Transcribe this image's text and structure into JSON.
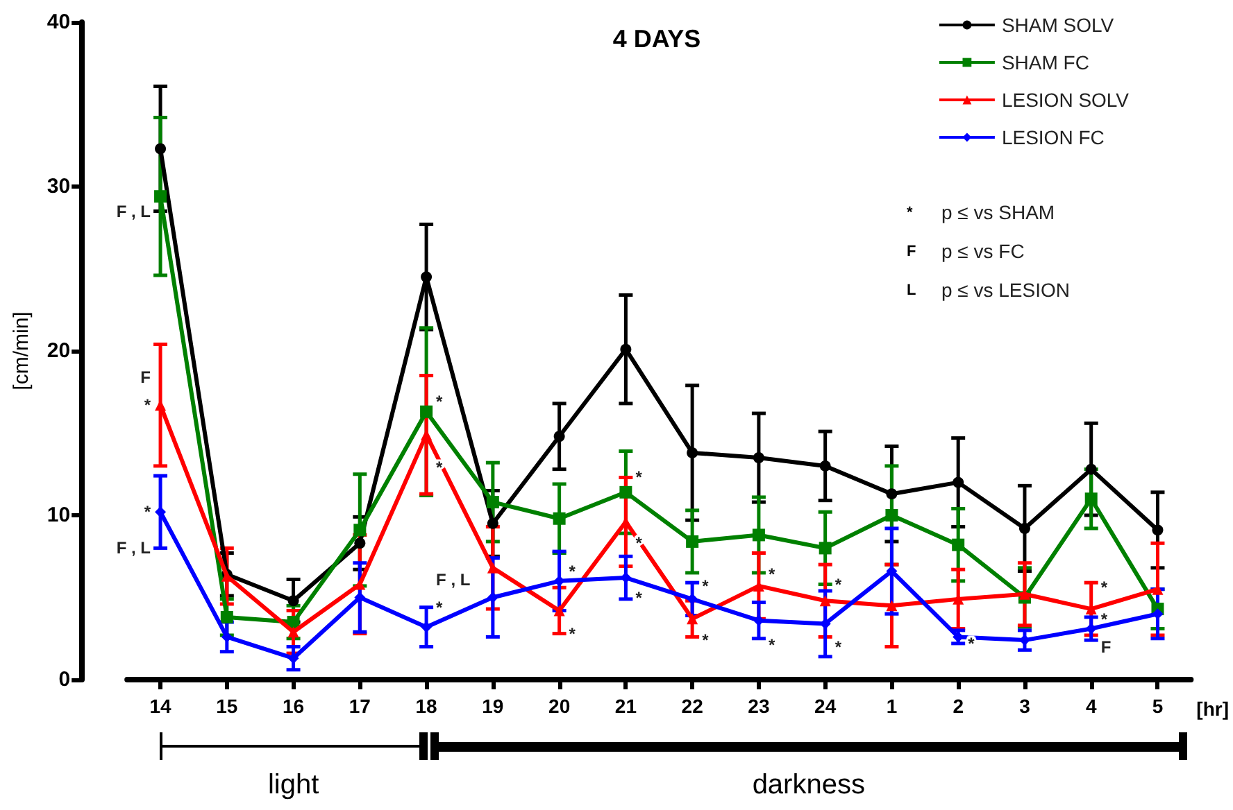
{
  "chart_data": {
    "type": "line",
    "title": "4 DAYS",
    "xlabel": "[hr]",
    "ylabel": "[cm/min]",
    "categories": [
      "14",
      "15",
      "16",
      "17",
      "18",
      "19",
      "20",
      "21",
      "22",
      "23",
      "24",
      "1",
      "2",
      "3",
      "4",
      "5"
    ],
    "ylim": [
      0,
      40
    ],
    "yticks": [
      0,
      10,
      20,
      30,
      40
    ],
    "grid": false,
    "legend": "top right",
    "series": [
      {
        "name": "SHAM SOLV",
        "color": "#000000",
        "marker": "circle",
        "values": [
          32.3,
          6.4,
          4.8,
          8.3,
          24.5,
          9.5,
          14.8,
          20.1,
          13.8,
          13.5,
          13.0,
          11.3,
          12.0,
          9.2,
          12.8,
          9.1
        ],
        "errors": [
          3.8,
          1.3,
          1.3,
          1.6,
          3.2,
          2.0,
          2.0,
          3.3,
          4.1,
          2.7,
          2.1,
          2.9,
          2.7,
          2.6,
          2.8,
          2.3
        ]
      },
      {
        "name": "SHAM FC",
        "color": "#008000",
        "marker": "square",
        "values": [
          29.4,
          3.8,
          3.5,
          9.1,
          16.3,
          10.8,
          9.8,
          11.4,
          8.4,
          8.8,
          8.0,
          10.0,
          8.2,
          5.0,
          11.0,
          4.3
        ],
        "errors": [
          4.8,
          1.1,
          1.0,
          3.4,
          5.1,
          2.4,
          2.1,
          2.5,
          1.9,
          2.3,
          2.2,
          3.0,
          2.2,
          1.8,
          1.8,
          1.2
        ]
      },
      {
        "name": "LESION SOLV",
        "color": "#ff0000",
        "marker": "triangle",
        "values": [
          16.7,
          6.3,
          2.9,
          5.8,
          14.9,
          6.8,
          4.2,
          9.6,
          3.7,
          5.7,
          4.8,
          4.5,
          4.9,
          5.2,
          4.3,
          5.5
        ],
        "errors": [
          3.7,
          1.7,
          1.3,
          3.0,
          3.6,
          2.5,
          1.4,
          2.7,
          1.1,
          2.0,
          2.2,
          2.5,
          1.8,
          1.9,
          1.6,
          2.8
        ]
      },
      {
        "name": "LESION FC",
        "color": "#0000ff",
        "marker": "diamond",
        "values": [
          10.2,
          2.6,
          1.3,
          5.0,
          3.2,
          5.0,
          6.0,
          6.2,
          4.9,
          3.6,
          3.4,
          6.6,
          2.6,
          2.4,
          3.1,
          4.0
        ],
        "errors": [
          2.2,
          0.9,
          0.7,
          2.1,
          1.2,
          2.4,
          1.8,
          1.3,
          1.0,
          1.1,
          2.0,
          2.6,
          0.4,
          0.6,
          0.7,
          1.5
        ]
      }
    ],
    "annotations": [
      "* p ≤ vs SHAM",
      "F p ≤ vs FC",
      "L p ≤ vs LESION",
      "light",
      "darkness",
      {
        "text": "F , L",
        "x": "14",
        "y": 28.5
      },
      {
        "text": "*",
        "x": "14",
        "y": 16.7
      },
      {
        "text": "F",
        "x": "14",
        "y": 16.7
      },
      {
        "text": "*",
        "x": "14",
        "y": 10.2
      },
      {
        "text": "F , L",
        "x": "14",
        "y": 8.0
      },
      {
        "text": "*",
        "x": "18",
        "y": 16.9
      },
      {
        "text": "*",
        "x": "18",
        "y": 12.9
      },
      {
        "text": "*",
        "x": "18",
        "y": 4.4
      },
      {
        "text": "F , L",
        "x": "18",
        "y": 4.4
      },
      {
        "text": "*",
        "x": "20",
        "y": 6.6
      },
      {
        "text": "*",
        "x": "20",
        "y": 2.8
      },
      {
        "text": "*",
        "x": "21",
        "y": 12.3
      },
      {
        "text": "*",
        "x": "21",
        "y": 8.3
      },
      {
        "text": "*",
        "x": "21",
        "y": 5.0
      },
      {
        "text": "*",
        "x": "22",
        "y": 5.7
      },
      {
        "text": "*",
        "x": "22",
        "y": 2.4
      },
      {
        "text": "*",
        "x": "23",
        "y": 6.4
      },
      {
        "text": "*",
        "x": "23",
        "y": 2.1
      },
      {
        "text": "*",
        "x": "24",
        "y": 5.8
      },
      {
        "text": "*",
        "x": "24",
        "y": 2.0
      },
      {
        "text": "*",
        "x": "2",
        "y": 2.2
      },
      {
        "text": "*",
        "x": "4",
        "y": 5.6
      },
      {
        "text": "F",
        "x": "4",
        "y": 2.0
      },
      {
        "text": "*",
        "x": "4",
        "y": 2.0
      }
    ]
  }
}
